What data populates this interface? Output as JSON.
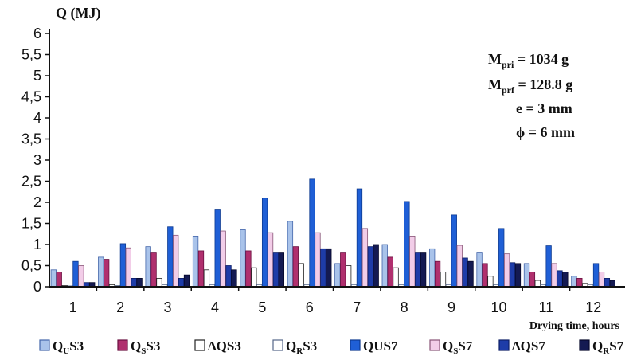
{
  "chart_data": {
    "type": "bar",
    "ylabel": "Q (MJ)",
    "xlabel": "Drying time, hours",
    "ylim": [
      0,
      6
    ],
    "yticks": [
      "0",
      "0,5",
      "1",
      "1,5",
      "2",
      "2,5",
      "3",
      "3,5",
      "4",
      "4,5",
      "5",
      "5,5",
      "6"
    ],
    "categories": [
      "1",
      "2",
      "3",
      "4",
      "5",
      "6",
      "7",
      "8",
      "9",
      "10",
      "11",
      "12"
    ],
    "grid": false,
    "legend_position": "bottom",
    "annotations": [
      {
        "main": "M",
        "sub": "pri",
        "rest": " = 1034 g"
      },
      {
        "main": "M",
        "sub": "prf",
        "rest": " = 128.8 g"
      },
      {
        "main": "e = 3 mm",
        "sub": "",
        "rest": ""
      },
      {
        "main": "ϕ = 6 mm",
        "sub": "",
        "rest": ""
      }
    ],
    "series": [
      {
        "name": "QUS3",
        "legend_main": "Q",
        "legend_sub": "U",
        "legend_rest": "S3",
        "color": "#a9c3ea",
        "stroke": "#4466aa",
        "values": [
          0.4,
          0.7,
          0.95,
          1.2,
          1.35,
          1.55,
          0.55,
          1.0,
          0.9,
          0.8,
          0.55,
          0.25
        ]
      },
      {
        "name": "QSS3",
        "legend_main": "Q",
        "legend_sub": "S",
        "legend_rest": "S3",
        "color": "#b0306e",
        "stroke": "#6a1040",
        "values": [
          0.35,
          0.65,
          0.8,
          0.85,
          0.85,
          0.95,
          0.8,
          0.7,
          0.6,
          0.55,
          0.35,
          0.2
        ]
      },
      {
        "name": "ΔQS3",
        "legend_main": "ΔQS3",
        "legend_sub": "",
        "legend_rest": "",
        "color": "#ffffff",
        "stroke": "#222222",
        "values": [
          0.03,
          0.05,
          0.2,
          0.4,
          0.45,
          0.55,
          0.5,
          0.45,
          0.35,
          0.25,
          0.15,
          0.08
        ]
      },
      {
        "name": "QRS3",
        "legend_main": "Q",
        "legend_sub": "R",
        "legend_rest": "S3",
        "color": "#ffffff",
        "stroke": "#556688",
        "values": [
          0.02,
          0.03,
          0.05,
          0.05,
          0.05,
          0.05,
          0.05,
          0.05,
          0.05,
          0.05,
          0.05,
          0.05
        ]
      },
      {
        "name": "QUS7",
        "legend_main": "QUS7",
        "legend_sub": "",
        "legend_rest": "",
        "color": "#1f5fd6",
        "stroke": "#0d3a90",
        "values": [
          0.6,
          1.02,
          1.42,
          1.82,
          2.1,
          2.55,
          2.32,
          2.02,
          1.7,
          1.38,
          0.97,
          0.55
        ]
      },
      {
        "name": "QSS7",
        "legend_main": "Q",
        "legend_sub": "S",
        "legend_rest": "S7",
        "color": "#f2cde8",
        "stroke": "#885577",
        "values": [
          0.5,
          0.92,
          1.22,
          1.32,
          1.28,
          1.28,
          1.38,
          1.2,
          0.98,
          0.78,
          0.55,
          0.35
        ]
      },
      {
        "name": "ΔQS7",
        "legend_main": "ΔQS7",
        "legend_sub": "",
        "legend_rest": "",
        "color": "#1e3ca8",
        "stroke": "#0d1f66",
        "values": [
          0.1,
          0.2,
          0.2,
          0.5,
          0.8,
          0.9,
          0.95,
          0.8,
          0.68,
          0.57,
          0.38,
          0.2
        ]
      },
      {
        "name": "QRS7",
        "legend_main": "Q",
        "legend_sub": "R",
        "legend_rest": "S7",
        "color": "#141a52",
        "stroke": "#05082a",
        "values": [
          0.1,
          0.2,
          0.28,
          0.4,
          0.8,
          0.9,
          1.0,
          0.8,
          0.6,
          0.55,
          0.35,
          0.15
        ]
      }
    ]
  }
}
